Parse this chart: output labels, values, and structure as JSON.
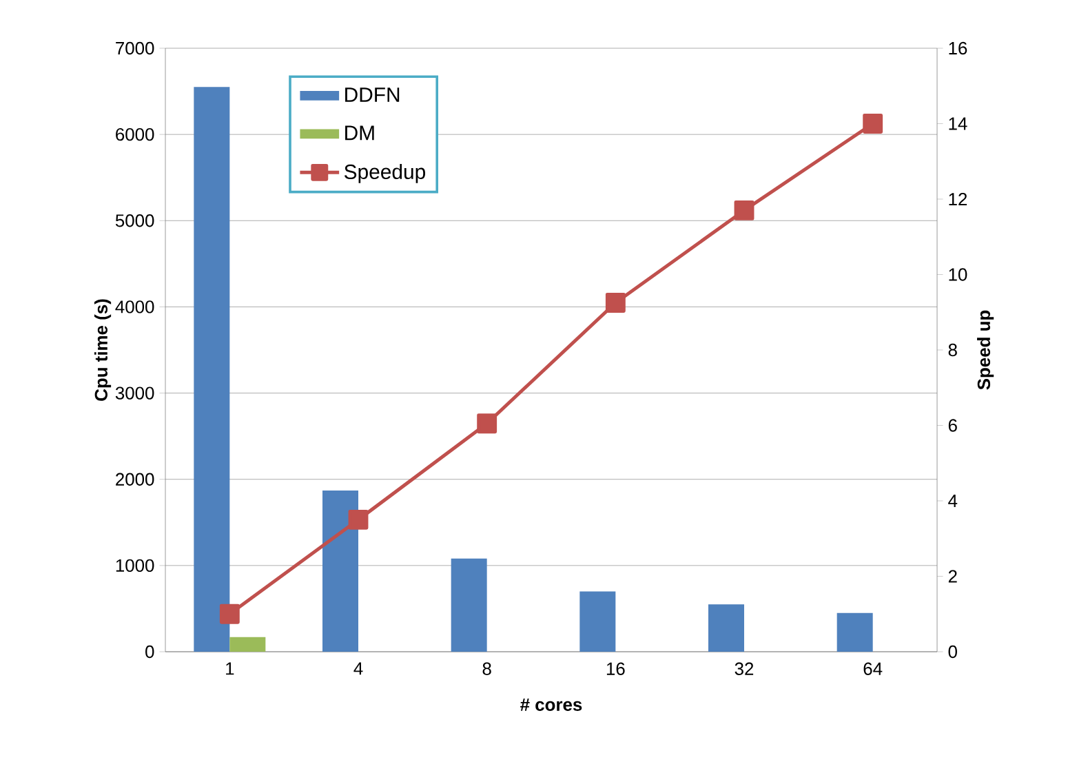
{
  "chart_data": {
    "type": "bar",
    "xlabel": "# cores",
    "ylabel": "Cpu time (s)",
    "y2label": "Speed up",
    "categories": [
      "1",
      "4",
      "8",
      "16",
      "32",
      "64"
    ],
    "series": [
      {
        "name": "DDFN",
        "color": "#4f81bd",
        "values": [
          6550,
          1870,
          1080,
          700,
          550,
          450
        ]
      },
      {
        "name": "DM",
        "color": "#9bbb59",
        "values": [
          170,
          null,
          null,
          null,
          null,
          null
        ]
      },
      {
        "name": "Speedup",
        "type": "line",
        "axis": "y2",
        "color": "#c0504d",
        "marker": "square",
        "values": [
          1,
          3.5,
          6.05,
          9.25,
          11.7,
          14
        ]
      }
    ],
    "ylim": [
      0,
      7000
    ],
    "yticks": [
      0,
      1000,
      2000,
      3000,
      4000,
      5000,
      6000,
      7000
    ],
    "y2lim": [
      0,
      16
    ],
    "y2ticks": [
      0,
      2,
      4,
      6,
      8,
      10,
      12,
      14,
      16
    ],
    "grid": "y",
    "legend": "top left"
  }
}
